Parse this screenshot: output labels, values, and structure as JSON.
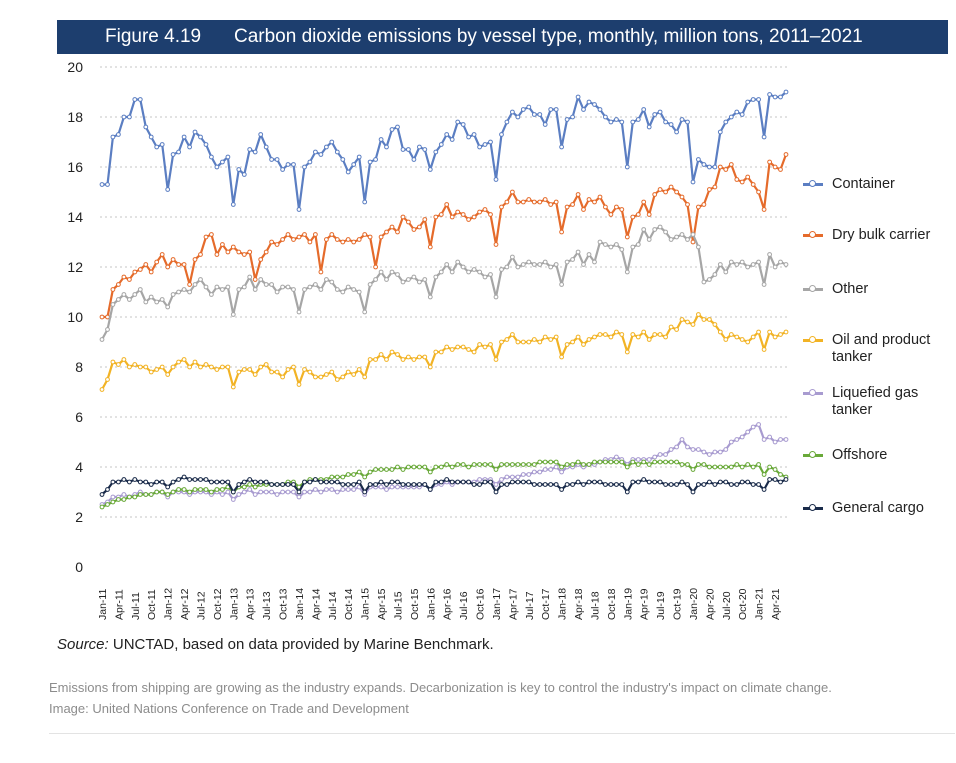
{
  "figure_label": "Figure 4.19",
  "figure_title": "Carbon dioxide emissions by vessel type, monthly, million tons, 2011–2021",
  "source_prefix": "Source:",
  "source_text": " UNCTAD, based on data provided by Marine Benchmark.",
  "caption_line1": "Emissions from shipping are growing as the industry expands. Decarbonization is key to control the industry's impact on climate change.",
  "caption_line2": "Image: United Nations Conference on Trade and Development",
  "chart_data": {
    "type": "line",
    "title": "Carbon dioxide emissions by vessel type, monthly, million tons, 2011–2021",
    "xlabel": "",
    "ylabel": "",
    "ylim": [
      0,
      20
    ],
    "yticks": [
      0,
      2,
      4,
      6,
      8,
      10,
      12,
      14,
      16,
      18,
      20
    ],
    "grid": "horizontal dashed",
    "legend_position": "right",
    "x_tick_labels": [
      "Jan-11",
      "Apr-11",
      "Jul-11",
      "Oct-11",
      "Jan-12",
      "Apr-12",
      "Jul-12",
      "Oct-12",
      "Jan-13",
      "Apr-13",
      "Jul-13",
      "Oct-13",
      "Jan-14",
      "Apr-14",
      "Jul-14",
      "Oct-14",
      "Jan-15",
      "Apr-15",
      "Jul-15",
      "Oct-15",
      "Jan-16",
      "Apr-16",
      "Jul-16",
      "Oct-16",
      "Jan-17",
      "Apr-17",
      "Jul-17",
      "Oct-17",
      "Jan-18",
      "Apr-18",
      "Jul-18",
      "Oct-18",
      "Jan-19",
      "Apr-19",
      "Jul-19",
      "Oct-19",
      "Jan-20",
      "Apr-20",
      "Jul-20",
      "Oct-20",
      "Jan-21",
      "Apr-21"
    ],
    "x_start": "Jan-11",
    "months": 126,
    "series": [
      {
        "name": "Container",
        "color": "#5b7ec2",
        "values": [
          15.3,
          15.3,
          17.2,
          17.3,
          18.0,
          18.0,
          18.7,
          18.7,
          17.6,
          17.2,
          16.8,
          16.9,
          15.1,
          16.5,
          16.6,
          17.2,
          16.8,
          17.4,
          17.2,
          16.9,
          16.4,
          16.0,
          16.2,
          16.4,
          14.5,
          15.9,
          15.7,
          16.7,
          16.6,
          17.3,
          16.8,
          16.3,
          16.3,
          15.9,
          16.1,
          16.1,
          14.3,
          16.0,
          16.2,
          16.6,
          16.5,
          16.8,
          17.0,
          16.6,
          16.3,
          15.8,
          16.1,
          16.4,
          14.6,
          16.2,
          16.3,
          17.1,
          16.8,
          17.5,
          17.6,
          16.7,
          16.7,
          16.3,
          16.8,
          16.7,
          15.9,
          16.6,
          16.9,
          17.3,
          17.1,
          17.8,
          17.7,
          17.2,
          17.3,
          16.8,
          16.9,
          17.0,
          15.5,
          17.3,
          17.8,
          18.2,
          18.0,
          18.3,
          18.4,
          18.1,
          18.1,
          17.7,
          18.3,
          18.3,
          16.8,
          17.9,
          18.0,
          18.8,
          18.3,
          18.6,
          18.5,
          18.3,
          18.0,
          17.8,
          17.9,
          17.8,
          16.0,
          17.8,
          17.9,
          18.3,
          17.6,
          18.1,
          18.2,
          17.8,
          17.7,
          17.4,
          17.9,
          17.8,
          15.4,
          16.3,
          16.1,
          16.0,
          16.0,
          17.4,
          17.8,
          18.0,
          18.2,
          18.1,
          18.6,
          18.7,
          18.7,
          17.2,
          18.9,
          18.8,
          18.8,
          19.0
        ]
      },
      {
        "name": "Dry bulk carrier",
        "color": "#e56b2b",
        "values": [
          10.0,
          10.0,
          11.1,
          11.3,
          11.6,
          11.5,
          11.8,
          11.9,
          12.1,
          11.8,
          12.2,
          12.5,
          12.0,
          12.3,
          12.1,
          12.1,
          11.3,
          12.3,
          12.5,
          13.2,
          13.3,
          12.5,
          12.9,
          12.6,
          12.8,
          12.6,
          12.5,
          12.6,
          11.5,
          12.3,
          12.6,
          13.0,
          12.9,
          13.1,
          13.3,
          13.1,
          13.2,
          13.3,
          13.0,
          13.3,
          11.8,
          13.1,
          13.3,
          13.1,
          13.0,
          13.1,
          13.0,
          13.1,
          13.3,
          13.2,
          12.0,
          13.2,
          13.4,
          13.6,
          13.4,
          14.0,
          13.8,
          13.5,
          13.6,
          13.9,
          12.8,
          14.0,
          14.1,
          14.5,
          14.0,
          14.2,
          14.1,
          13.9,
          14.0,
          14.2,
          14.3,
          14.1,
          12.9,
          14.4,
          14.6,
          15.0,
          14.6,
          14.6,
          14.7,
          14.6,
          14.6,
          14.7,
          14.5,
          14.6,
          13.4,
          14.4,
          14.5,
          14.9,
          14.3,
          14.7,
          14.6,
          14.8,
          14.4,
          14.1,
          14.4,
          14.3,
          13.2,
          14.0,
          14.1,
          14.6,
          14.1,
          14.9,
          15.1,
          15.0,
          15.2,
          15.0,
          14.8,
          14.5,
          13.0,
          14.4,
          14.5,
          15.1,
          15.2,
          16.0,
          15.9,
          16.1,
          15.5,
          15.4,
          15.6,
          15.3,
          15.0,
          14.3,
          16.2,
          16.0,
          15.9,
          16.5
        ]
      },
      {
        "name": "Other",
        "color": "#a6a6a6",
        "values": [
          9.1,
          9.5,
          10.5,
          10.7,
          10.9,
          10.7,
          10.9,
          11.1,
          10.6,
          10.8,
          10.6,
          10.7,
          10.4,
          10.9,
          11.0,
          11.1,
          11.0,
          11.3,
          11.5,
          11.2,
          10.9,
          11.2,
          11.1,
          11.2,
          10.1,
          11.1,
          11.2,
          11.6,
          11.1,
          11.5,
          11.3,
          11.3,
          11.0,
          11.2,
          11.2,
          11.1,
          10.2,
          11.1,
          11.2,
          11.3,
          11.1,
          11.5,
          11.4,
          11.1,
          11.0,
          11.2,
          11.1,
          11.0,
          10.2,
          11.3,
          11.5,
          11.8,
          11.5,
          11.8,
          11.7,
          11.4,
          11.5,
          11.6,
          11.4,
          11.5,
          10.8,
          11.6,
          11.8,
          12.1,
          11.8,
          12.2,
          12.0,
          11.8,
          11.9,
          11.8,
          11.6,
          11.7,
          10.8,
          11.9,
          12.0,
          12.4,
          12.0,
          12.1,
          12.2,
          12.1,
          12.1,
          12.2,
          12.0,
          12.1,
          11.3,
          12.2,
          12.3,
          12.6,
          12.1,
          12.5,
          12.2,
          13.0,
          12.9,
          12.8,
          12.9,
          12.7,
          11.8,
          12.8,
          12.9,
          13.5,
          13.1,
          13.5,
          13.6,
          13.4,
          13.1,
          13.2,
          13.3,
          13.1,
          13.3,
          12.8,
          11.4,
          11.5,
          11.7,
          12.1,
          11.8,
          12.2,
          12.1,
          12.2,
          12.0,
          12.1,
          12.2,
          11.3,
          12.5,
          12.0,
          12.2,
          12.1
        ]
      },
      {
        "name": "Oil and product tanker",
        "color": "#f2b325",
        "values": [
          7.1,
          7.5,
          8.2,
          8.1,
          8.3,
          8.0,
          8.1,
          8.0,
          8.0,
          7.8,
          7.9,
          8.0,
          7.7,
          8.0,
          8.2,
          8.3,
          8.0,
          8.2,
          8.0,
          8.1,
          8.0,
          7.9,
          8.0,
          8.0,
          7.2,
          7.8,
          7.9,
          7.9,
          7.7,
          8.0,
          8.1,
          7.8,
          7.8,
          7.6,
          7.9,
          8.0,
          7.3,
          7.9,
          7.8,
          7.6,
          7.6,
          7.7,
          7.8,
          7.5,
          7.6,
          7.8,
          7.7,
          7.9,
          7.6,
          8.3,
          8.3,
          8.5,
          8.3,
          8.6,
          8.5,
          8.3,
          8.4,
          8.3,
          8.4,
          8.4,
          8.0,
          8.6,
          8.6,
          8.8,
          8.7,
          8.8,
          8.8,
          8.7,
          8.6,
          8.9,
          8.8,
          8.9,
          8.3,
          9.0,
          9.1,
          9.3,
          9.0,
          9.0,
          9.0,
          9.1,
          9.0,
          9.2,
          9.1,
          9.2,
          8.4,
          8.9,
          9.0,
          9.2,
          8.9,
          9.1,
          9.2,
          9.3,
          9.3,
          9.2,
          9.4,
          9.3,
          8.6,
          9.3,
          9.2,
          9.4,
          9.1,
          9.3,
          9.3,
          9.2,
          9.6,
          9.5,
          9.9,
          9.8,
          9.7,
          10.1,
          9.9,
          9.9,
          9.7,
          9.4,
          9.1,
          9.3,
          9.2,
          9.1,
          9.0,
          9.2,
          9.4,
          8.7,
          9.4,
          9.2,
          9.3,
          9.4
        ]
      },
      {
        "name": "Liquefied gas tanker",
        "color": "#a89bd0",
        "values": [
          2.5,
          2.6,
          2.8,
          2.8,
          2.9,
          2.8,
          2.9,
          3.0,
          2.9,
          2.9,
          3.0,
          3.0,
          2.8,
          3.0,
          3.0,
          3.0,
          2.9,
          3.0,
          3.0,
          3.0,
          2.9,
          3.0,
          2.9,
          3.0,
          2.7,
          2.9,
          3.0,
          3.1,
          2.9,
          3.0,
          3.0,
          3.0,
          2.9,
          3.0,
          3.0,
          3.0,
          2.8,
          3.0,
          3.0,
          3.1,
          3.0,
          3.1,
          3.1,
          3.0,
          3.1,
          3.1,
          3.1,
          3.2,
          2.9,
          3.2,
          3.2,
          3.2,
          3.1,
          3.2,
          3.2,
          3.2,
          3.2,
          3.2,
          3.2,
          3.3,
          3.1,
          3.3,
          3.3,
          3.4,
          3.3,
          3.4,
          3.4,
          3.4,
          3.4,
          3.5,
          3.5,
          3.5,
          3.3,
          3.5,
          3.6,
          3.6,
          3.6,
          3.7,
          3.7,
          3.8,
          3.8,
          3.9,
          3.9,
          4.0,
          3.8,
          4.0,
          4.0,
          4.1,
          4.0,
          4.1,
          4.1,
          4.2,
          4.3,
          4.3,
          4.4,
          4.3,
          4.1,
          4.3,
          4.3,
          4.3,
          4.3,
          4.4,
          4.5,
          4.5,
          4.7,
          4.8,
          5.1,
          4.8,
          4.7,
          4.7,
          4.6,
          4.5,
          4.6,
          4.6,
          4.7,
          5.0,
          5.1,
          5.2,
          5.4,
          5.6,
          5.7,
          5.1,
          5.2,
          5.0,
          5.1,
          5.1
        ]
      },
      {
        "name": "Offshore",
        "color": "#69a939",
        "values": [
          2.4,
          2.5,
          2.6,
          2.7,
          2.7,
          2.8,
          2.8,
          2.9,
          2.9,
          2.9,
          3.0,
          3.0,
          2.9,
          3.0,
          3.1,
          3.1,
          3.0,
          3.1,
          3.1,
          3.1,
          3.0,
          3.1,
          3.1,
          3.2,
          3.0,
          3.2,
          3.2,
          3.3,
          3.2,
          3.3,
          3.3,
          3.3,
          3.3,
          3.3,
          3.4,
          3.4,
          3.2,
          3.4,
          3.5,
          3.5,
          3.5,
          3.5,
          3.6,
          3.6,
          3.6,
          3.7,
          3.7,
          3.8,
          3.6,
          3.8,
          3.9,
          3.9,
          3.9,
          3.9,
          4.0,
          3.9,
          4.0,
          4.0,
          4.0,
          4.0,
          3.8,
          4.0,
          4.0,
          4.1,
          4.0,
          4.1,
          4.1,
          4.0,
          4.1,
          4.1,
          4.1,
          4.1,
          3.9,
          4.1,
          4.1,
          4.1,
          4.1,
          4.1,
          4.1,
          4.1,
          4.2,
          4.2,
          4.2,
          4.2,
          4.0,
          4.1,
          4.1,
          4.2,
          4.1,
          4.1,
          4.2,
          4.2,
          4.2,
          4.2,
          4.2,
          4.2,
          4.0,
          4.2,
          4.1,
          4.2,
          4.1,
          4.2,
          4.2,
          4.2,
          4.2,
          4.2,
          4.1,
          4.1,
          3.9,
          4.1,
          4.1,
          4.0,
          4.0,
          4.0,
          4.0,
          4.0,
          4.1,
          4.0,
          4.1,
          4.0,
          4.1,
          3.7,
          4.0,
          3.9,
          3.7,
          3.6
        ]
      },
      {
        "name": "General cargo",
        "color": "#1a2b4a",
        "values": [
          2.9,
          3.1,
          3.4,
          3.4,
          3.5,
          3.4,
          3.5,
          3.4,
          3.4,
          3.3,
          3.4,
          3.4,
          3.2,
          3.4,
          3.5,
          3.6,
          3.5,
          3.5,
          3.5,
          3.5,
          3.4,
          3.4,
          3.4,
          3.4,
          3.0,
          3.3,
          3.4,
          3.5,
          3.4,
          3.4,
          3.4,
          3.3,
          3.3,
          3.3,
          3.3,
          3.3,
          3.0,
          3.4,
          3.4,
          3.5,
          3.4,
          3.4,
          3.4,
          3.4,
          3.3,
          3.3,
          3.3,
          3.4,
          3.0,
          3.3,
          3.3,
          3.4,
          3.3,
          3.4,
          3.4,
          3.3,
          3.3,
          3.3,
          3.3,
          3.3,
          3.1,
          3.4,
          3.4,
          3.5,
          3.4,
          3.4,
          3.4,
          3.4,
          3.3,
          3.3,
          3.4,
          3.4,
          3.0,
          3.3,
          3.3,
          3.4,
          3.4,
          3.4,
          3.4,
          3.3,
          3.3,
          3.3,
          3.3,
          3.3,
          3.1,
          3.3,
          3.3,
          3.4,
          3.3,
          3.4,
          3.4,
          3.4,
          3.3,
          3.3,
          3.3,
          3.3,
          3.0,
          3.4,
          3.4,
          3.5,
          3.4,
          3.4,
          3.4,
          3.3,
          3.3,
          3.3,
          3.4,
          3.3,
          3.0,
          3.3,
          3.3,
          3.4,
          3.3,
          3.4,
          3.4,
          3.3,
          3.3,
          3.4,
          3.4,
          3.3,
          3.3,
          3.1,
          3.5,
          3.5,
          3.4,
          3.5
        ]
      }
    ]
  },
  "legend": {
    "container": "Container",
    "dry_bulk": "Dry bulk carrier",
    "other": "Other",
    "oil": "Oil and product tanker",
    "lng": "Liquefied gas tanker",
    "offshore": "Offshore",
    "general": "General cargo"
  }
}
